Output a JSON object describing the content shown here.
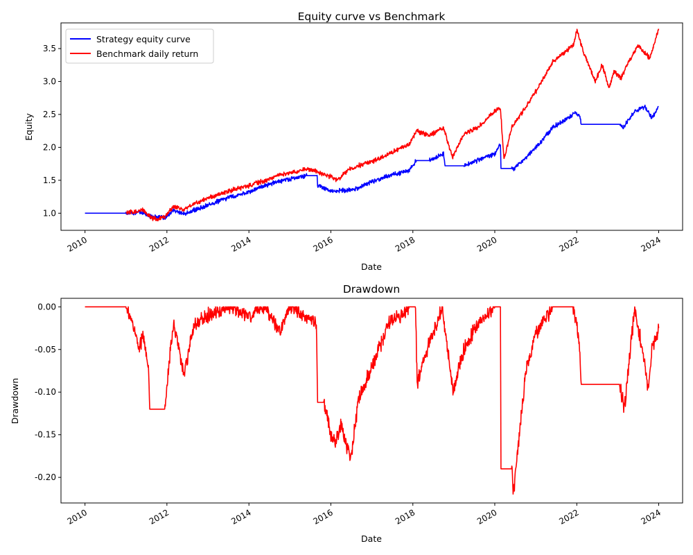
{
  "chart_data": [
    {
      "type": "line",
      "title": "Equity curve vs Benchmark",
      "xlabel": "Date",
      "ylabel": "Equity",
      "xlim": [
        "2009-06-01",
        "2024-08-01"
      ],
      "ylim": [
        0.74,
        3.89
      ],
      "x_ticks": [
        "2010",
        "2012",
        "2014",
        "2016",
        "2018",
        "2020",
        "2022",
        "2024"
      ],
      "y_ticks": [
        "1.0",
        "1.5",
        "2.0",
        "2.5",
        "3.0",
        "3.5"
      ],
      "legend_position": "upper-left",
      "grid": false,
      "series": [
        {
          "name": "Strategy equity curve",
          "color": "#0000ff",
          "x": [
            "2010-01-01",
            "2011-01-01",
            "2011-06-01",
            "2011-08-01",
            "2011-12-15",
            "2012-03-01",
            "2012-06-01",
            "2012-09-01",
            "2013-01-01",
            "2013-06-01",
            "2014-01-01",
            "2014-06-01",
            "2014-10-01",
            "2015-01-01",
            "2015-06-01",
            "2015-09-01",
            "2015-09-05",
            "2016-01-01",
            "2016-06-01",
            "2016-09-01",
            "2017-01-01",
            "2017-06-01",
            "2017-12-01",
            "2018-02-01",
            "2018-06-01",
            "2018-10-01",
            "2018-10-15",
            "2019-04-01",
            "2019-08-01",
            "2020-01-01",
            "2020-02-20",
            "2020-02-25",
            "2020-06-01",
            "2020-06-15",
            "2020-10-01",
            "2021-01-01",
            "2021-06-01",
            "2021-12-01",
            "2022-01-01",
            "2022-02-01",
            "2022-02-10",
            "2023-01-20",
            "2023-02-15",
            "2023-06-01",
            "2023-09-01",
            "2023-11-01",
            "2024-01-01"
          ],
          "y": [
            1.0,
            1.0,
            1.02,
            0.95,
            0.93,
            1.05,
            0.98,
            1.05,
            1.12,
            1.22,
            1.32,
            1.43,
            1.48,
            1.52,
            1.57,
            1.57,
            1.42,
            1.34,
            1.35,
            1.38,
            1.48,
            1.57,
            1.65,
            1.8,
            1.8,
            1.9,
            1.72,
            1.72,
            1.8,
            1.9,
            2.05,
            1.68,
            1.68,
            1.67,
            1.84,
            2.0,
            2.3,
            2.5,
            2.52,
            2.45,
            2.35,
            2.35,
            2.3,
            2.55,
            2.62,
            2.45,
            2.62
          ]
        },
        {
          "name": "Benchmark daily return",
          "color": "#ff0000",
          "x": [
            "2011-01-01",
            "2011-06-01",
            "2011-08-01",
            "2011-10-01",
            "2011-12-15",
            "2012-03-01",
            "2012-06-01",
            "2012-09-01",
            "2013-01-01",
            "2013-06-01",
            "2014-01-01",
            "2014-06-01",
            "2014-10-01",
            "2015-01-01",
            "2015-06-01",
            "2015-09-01",
            "2016-01-01",
            "2016-03-01",
            "2016-06-01",
            "2016-09-01",
            "2017-01-01",
            "2017-06-01",
            "2017-12-01",
            "2018-02-01",
            "2018-06-01",
            "2018-10-01",
            "2018-12-20",
            "2019-04-01",
            "2019-08-01",
            "2020-01-01",
            "2020-02-20",
            "2020-03-23",
            "2020-06-01",
            "2020-10-01",
            "2021-01-01",
            "2021-06-01",
            "2021-12-01",
            "2022-01-03",
            "2022-03-01",
            "2022-06-15",
            "2022-08-15",
            "2022-10-15",
            "2022-12-01",
            "2023-02-01",
            "2023-03-15",
            "2023-07-01",
            "2023-10-15",
            "2024-01-01"
          ],
          "y": [
            1.0,
            1.05,
            0.95,
            0.9,
            0.95,
            1.1,
            1.05,
            1.15,
            1.22,
            1.32,
            1.42,
            1.5,
            1.58,
            1.6,
            1.68,
            1.63,
            1.55,
            1.5,
            1.65,
            1.72,
            1.78,
            1.9,
            2.05,
            2.25,
            2.18,
            2.3,
            1.85,
            2.2,
            2.3,
            2.55,
            2.6,
            1.82,
            2.3,
            2.6,
            2.85,
            3.3,
            3.55,
            3.78,
            3.45,
            3.0,
            3.25,
            2.9,
            3.15,
            3.05,
            3.22,
            3.55,
            3.35,
            3.8
          ]
        }
      ]
    },
    {
      "type": "line",
      "title": "Drawdown",
      "xlabel": "Date",
      "ylabel": "Drawdown",
      "xlim": [
        "2009-06-01",
        "2024-08-01"
      ],
      "ylim": [
        -0.23,
        0.01
      ],
      "x_ticks": [
        "2010",
        "2012",
        "2014",
        "2016",
        "2018",
        "2020",
        "2022",
        "2024"
      ],
      "y_ticks": [
        "0.00",
        "-0.05",
        "-0.10",
        "-0.15",
        "-0.20"
      ],
      "grid": false,
      "series": [
        {
          "color": "#ff0000",
          "x": [
            "2010-01-01",
            "2011-01-01",
            "2011-03-01",
            "2011-05-01",
            "2011-06-01",
            "2011-07-20",
            "2011-08-01",
            "2011-12-15",
            "2012-02-01",
            "2012-03-01",
            "2012-06-01",
            "2012-09-01",
            "2013-01-01",
            "2013-06-01",
            "2014-01-01",
            "2014-06-01",
            "2014-10-01",
            "2015-01-01",
            "2015-06-01",
            "2015-08-25",
            "2015-09-05",
            "2015-11-01",
            "2016-01-01",
            "2016-02-10",
            "2016-04-01",
            "2016-06-25",
            "2016-09-01",
            "2017-01-01",
            "2017-06-01",
            "2017-12-01",
            "2018-01-25",
            "2018-02-08",
            "2018-06-01",
            "2018-09-20",
            "2018-12-24",
            "2019-04-01",
            "2019-08-01",
            "2020-01-01",
            "2020-02-20",
            "2020-02-25",
            "2020-06-01",
            "2020-06-15",
            "2020-10-01",
            "2021-01-01",
            "2021-06-01",
            "2021-12-01",
            "2022-01-01",
            "2022-02-01",
            "2022-02-10",
            "2023-01-20",
            "2023-03-01",
            "2023-06-01",
            "2023-09-01",
            "2023-10-01",
            "2023-11-01",
            "2024-01-01"
          ],
          "y": [
            0.0,
            0.0,
            -0.02,
            -0.05,
            -0.03,
            -0.07,
            -0.12,
            -0.12,
            -0.05,
            -0.02,
            -0.08,
            -0.02,
            -0.01,
            0.0,
            -0.01,
            0.0,
            -0.03,
            0.0,
            -0.01,
            -0.02,
            -0.112,
            -0.112,
            -0.15,
            -0.16,
            -0.14,
            -0.18,
            -0.11,
            -0.07,
            -0.02,
            0.0,
            0.0,
            -0.09,
            -0.04,
            0.0,
            -0.1,
            -0.05,
            -0.02,
            0.0,
            0.0,
            -0.19,
            -0.19,
            -0.218,
            -0.08,
            -0.03,
            0.0,
            0.0,
            -0.02,
            -0.06,
            -0.091,
            -0.091,
            -0.12,
            0.0,
            -0.07,
            -0.099,
            -0.05,
            -0.025
          ]
        }
      ]
    }
  ]
}
